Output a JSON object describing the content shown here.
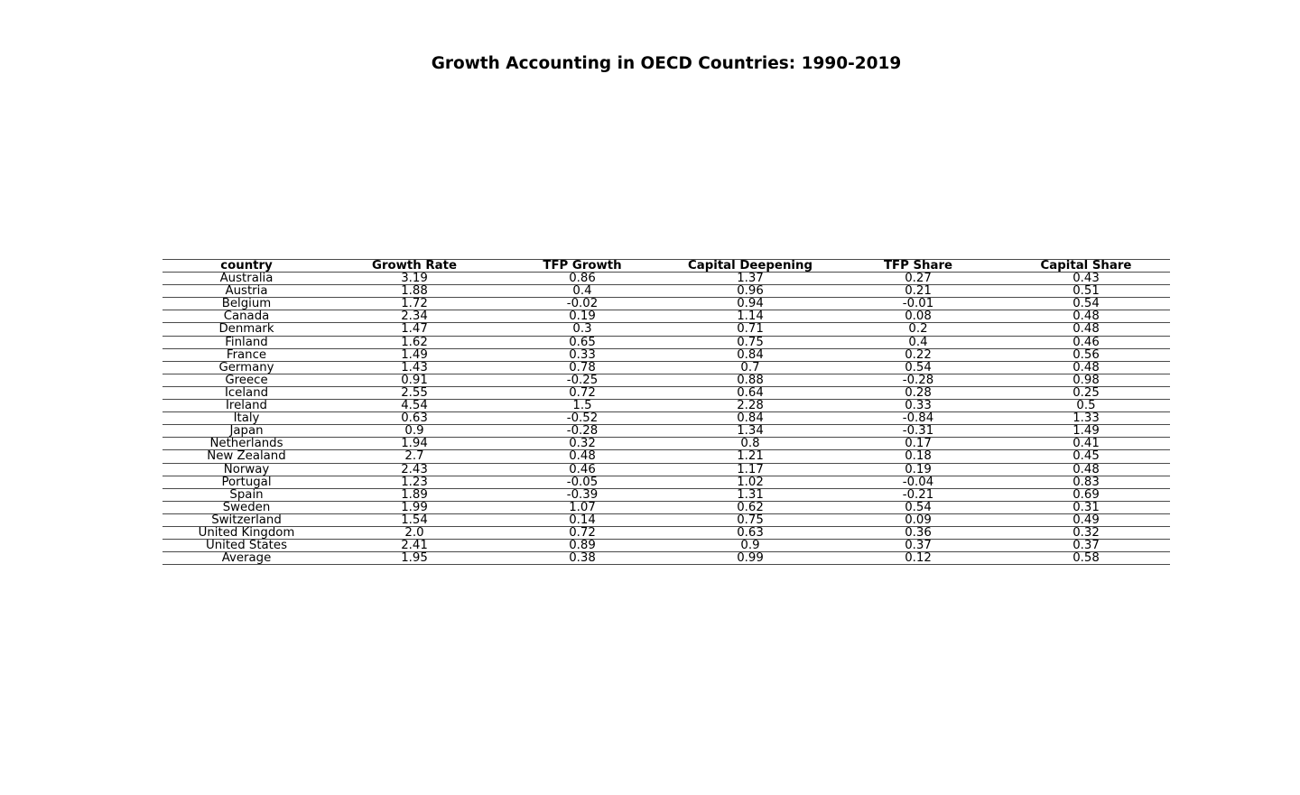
{
  "chart_data": {
    "type": "table",
    "title": "Growth Accounting in OECD Countries: 1990-2019",
    "columns": [
      "country",
      "Growth Rate",
      "TFP Growth",
      "Capital Deepening",
      "TFP Share",
      "Capital Share"
    ],
    "rows": [
      [
        "Australia",
        "3.19",
        "0.86",
        "1.37",
        "0.27",
        "0.43"
      ],
      [
        "Austria",
        "1.88",
        "0.4",
        "0.96",
        "0.21",
        "0.51"
      ],
      [
        "Belgium",
        "1.72",
        "-0.02",
        "0.94",
        "-0.01",
        "0.54"
      ],
      [
        "Canada",
        "2.34",
        "0.19",
        "1.14",
        "0.08",
        "0.48"
      ],
      [
        "Denmark",
        "1.47",
        "0.3",
        "0.71",
        "0.2",
        "0.48"
      ],
      [
        "Finland",
        "1.62",
        "0.65",
        "0.75",
        "0.4",
        "0.46"
      ],
      [
        "France",
        "1.49",
        "0.33",
        "0.84",
        "0.22",
        "0.56"
      ],
      [
        "Germany",
        "1.43",
        "0.78",
        "0.7",
        "0.54",
        "0.48"
      ],
      [
        "Greece",
        "0.91",
        "-0.25",
        "0.88",
        "-0.28",
        "0.98"
      ],
      [
        "Iceland",
        "2.55",
        "0.72",
        "0.64",
        "0.28",
        "0.25"
      ],
      [
        "Ireland",
        "4.54",
        "1.5",
        "2.28",
        "0.33",
        "0.5"
      ],
      [
        "Italy",
        "0.63",
        "-0.52",
        "0.84",
        "-0.84",
        "1.33"
      ],
      [
        "Japan",
        "0.9",
        "-0.28",
        "1.34",
        "-0.31",
        "1.49"
      ],
      [
        "Netherlands",
        "1.94",
        "0.32",
        "0.8",
        "0.17",
        "0.41"
      ],
      [
        "New Zealand",
        "2.7",
        "0.48",
        "1.21",
        "0.18",
        "0.45"
      ],
      [
        "Norway",
        "2.43",
        "0.46",
        "1.17",
        "0.19",
        "0.48"
      ],
      [
        "Portugal",
        "1.23",
        "-0.05",
        "1.02",
        "-0.04",
        "0.83"
      ],
      [
        "Spain",
        "1.89",
        "-0.39",
        "1.31",
        "-0.21",
        "0.69"
      ],
      [
        "Sweden",
        "1.99",
        "1.07",
        "0.62",
        "0.54",
        "0.31"
      ],
      [
        "Switzerland",
        "1.54",
        "0.14",
        "0.75",
        "0.09",
        "0.49"
      ],
      [
        "United Kingdom",
        "2.0",
        "0.72",
        "0.63",
        "0.36",
        "0.32"
      ],
      [
        "United States",
        "2.41",
        "0.89",
        "0.9",
        "0.37",
        "0.37"
      ],
      [
        "Average",
        "1.95",
        "0.38",
        "0.99",
        "0.12",
        "0.58"
      ]
    ]
  }
}
